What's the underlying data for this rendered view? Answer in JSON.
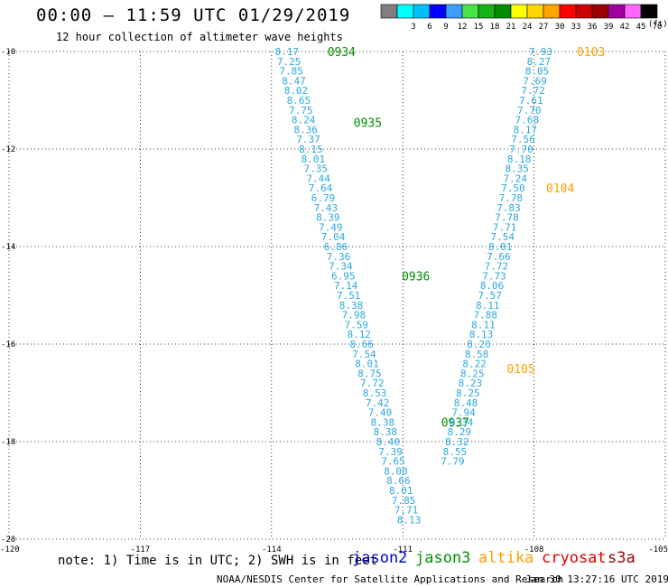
{
  "header": {
    "title": "00:00 — 11:59 UTC 01/29/2019",
    "subtitle": "12 hour collection of altimeter wave heights",
    "scale_unit": "(ft)"
  },
  "color_scale": [
    {
      "label": "",
      "color": "#7f7f7f"
    },
    {
      "label": "3",
      "color": "#00ffff"
    },
    {
      "label": "6",
      "color": "#00bfff"
    },
    {
      "label": "9",
      "color": "#0000ff"
    },
    {
      "label": "12",
      "color": "#3c9cff"
    },
    {
      "label": "15",
      "color": "#47e347"
    },
    {
      "label": "18",
      "color": "#16b316"
    },
    {
      "label": "21",
      "color": "#008c00"
    },
    {
      "label": "24",
      "color": "#ffff00"
    },
    {
      "label": "27",
      "color": "#ffd700"
    },
    {
      "label": "30",
      "color": "#ffa500"
    },
    {
      "label": "33",
      "color": "#ff0000"
    },
    {
      "label": "36",
      "color": "#cc0000"
    },
    {
      "label": "39",
      "color": "#990000"
    },
    {
      "label": "42",
      "color": "#a000a0"
    },
    {
      "label": "45",
      "color": "#ff66ff"
    },
    {
      "label": "70",
      "color": "#000000"
    }
  ],
  "footer": {
    "note": "note: 1) Time is in UTC; 2) SWH is in feet",
    "satellites": [
      {
        "name": "jason2",
        "color": "#0000d0"
      },
      {
        "name": "jason3",
        "color": "#009000"
      },
      {
        "name": "altika",
        "color": "#ffa000"
      },
      {
        "name": "cryosat",
        "color": "#e00000"
      },
      {
        "name": "s3a",
        "color": "#a00000"
      }
    ],
    "credit": "NOAA/NESDIS Center for Satellite Applications and Research",
    "timestamp": "Jan 30 13:27:16 UTC 2019"
  },
  "chart_data": {
    "type": "scatter",
    "title": "00:00 — 11:59 UTC 01/29/2019",
    "xlim": [
      -120,
      -105
    ],
    "ylim": [
      -20,
      -10
    ],
    "x_ticks": [
      -120,
      -117,
      -114,
      -111,
      -108,
      -105
    ],
    "y_ticks": [
      -20,
      -18,
      -16,
      -14,
      -12,
      -10
    ],
    "x_tick_labels": [
      "-120",
      "-117",
      "-114",
      "-111",
      "-108",
      "-105"
    ],
    "y_tick_labels": [
      "-20",
      "-18",
      "-16",
      "-14",
      "-12",
      "-10"
    ],
    "grid": true,
    "value_color": "#2aa8e0",
    "series": [
      {
        "name": "jason3",
        "color": "#009000",
        "points": [
          {
            "lon": -113.65,
            "lat": -10.0,
            "swh": 8.17
          },
          {
            "lon": -113.6,
            "lat": -10.2,
            "swh": 7.25
          },
          {
            "lon": -113.55,
            "lat": -10.4,
            "swh": 7.85
          },
          {
            "lon": -113.49,
            "lat": -10.6,
            "swh": 8.47
          },
          {
            "lon": -113.44,
            "lat": -10.8,
            "swh": 8.02
          },
          {
            "lon": -113.38,
            "lat": -11.0,
            "swh": 8.65
          },
          {
            "lon": -113.33,
            "lat": -11.2,
            "swh": 7.75
          },
          {
            "lon": -113.27,
            "lat": -11.4,
            "swh": 8.24
          },
          {
            "lon": -113.22,
            "lat": -11.6,
            "swh": 8.36
          },
          {
            "lon": -113.16,
            "lat": -11.8,
            "swh": 7.37
          },
          {
            "lon": -113.1,
            "lat": -12.0,
            "swh": 8.15
          },
          {
            "lon": -113.05,
            "lat": -12.2,
            "swh": 8.01
          },
          {
            "lon": -112.99,
            "lat": -12.4,
            "swh": 7.35
          },
          {
            "lon": -112.93,
            "lat": -12.6,
            "swh": 7.44
          },
          {
            "lon": -112.88,
            "lat": -12.8,
            "swh": 7.64
          },
          {
            "lon": -112.82,
            "lat": -13.0,
            "swh": 6.79
          },
          {
            "lon": -112.76,
            "lat": -13.2,
            "swh": 7.43
          },
          {
            "lon": -112.71,
            "lat": -13.4,
            "swh": 8.39
          },
          {
            "lon": -112.65,
            "lat": -13.6,
            "swh": 7.49
          },
          {
            "lon": -112.59,
            "lat": -13.8,
            "swh": 7.04
          },
          {
            "lon": -112.53,
            "lat": -14.0,
            "swh": 6.86
          },
          {
            "lon": -112.47,
            "lat": -14.2,
            "swh": 7.36
          },
          {
            "lon": -112.42,
            "lat": -14.4,
            "swh": 7.34
          },
          {
            "lon": -112.36,
            "lat": -14.6,
            "swh": 6.95
          },
          {
            "lon": -112.3,
            "lat": -14.8,
            "swh": 7.14
          },
          {
            "lon": -112.24,
            "lat": -15.0,
            "swh": 7.51
          },
          {
            "lon": -112.18,
            "lat": -15.2,
            "swh": 8.38
          },
          {
            "lon": -112.12,
            "lat": -15.4,
            "swh": 7.98
          },
          {
            "lon": -112.06,
            "lat": -15.6,
            "swh": 7.59
          },
          {
            "lon": -112.0,
            "lat": -15.8,
            "swh": 8.12
          },
          {
            "lon": -111.94,
            "lat": -16.0,
            "swh": 8.66
          },
          {
            "lon": -111.88,
            "lat": -16.2,
            "swh": 7.54
          },
          {
            "lon": -111.82,
            "lat": -16.4,
            "swh": 8.01
          },
          {
            "lon": -111.76,
            "lat": -16.6,
            "swh": 8.75
          },
          {
            "lon": -111.7,
            "lat": -16.8,
            "swh": 7.72
          },
          {
            "lon": -111.64,
            "lat": -17.0,
            "swh": 8.53
          },
          {
            "lon": -111.58,
            "lat": -17.2,
            "swh": 7.42
          },
          {
            "lon": -111.52,
            "lat": -17.4,
            "swh": 7.4
          },
          {
            "lon": -111.46,
            "lat": -17.6,
            "swh": 8.38
          },
          {
            "lon": -111.4,
            "lat": -17.8,
            "swh": 8.38
          },
          {
            "lon": -111.34,
            "lat": -18.0,
            "swh": 8.4
          },
          {
            "lon": -111.28,
            "lat": -18.2,
            "swh": 7.39
          },
          {
            "lon": -111.22,
            "lat": -18.4,
            "swh": 7.65
          },
          {
            "lon": -111.16,
            "lat": -18.6,
            "swh": 8.0
          },
          {
            "lon": -111.1,
            "lat": -18.8,
            "swh": 8.66
          },
          {
            "lon": -111.04,
            "lat": -19.0,
            "swh": 8.01
          },
          {
            "lon": -110.98,
            "lat": -19.2,
            "swh": 7.85
          },
          {
            "lon": -110.92,
            "lat": -19.4,
            "swh": 7.71
          },
          {
            "lon": -110.86,
            "lat": -19.6,
            "swh": 8.13
          }
        ],
        "time_labels": [
          {
            "text": "0934",
            "lon": -112.4,
            "lat": -10.0
          },
          {
            "text": "0935",
            "lon": -111.8,
            "lat": -11.45
          },
          {
            "text": "0936",
            "lon": -110.7,
            "lat": -14.6
          },
          {
            "text": "0937",
            "lon": -109.8,
            "lat": -17.6
          }
        ]
      },
      {
        "name": "altika",
        "color": "#ffa000",
        "points": [
          {
            "lon": -107.85,
            "lat": -10.0,
            "swh": 7.93
          },
          {
            "lon": -107.89,
            "lat": -10.2,
            "swh": 8.27
          },
          {
            "lon": -107.93,
            "lat": -10.4,
            "swh": 8.05
          },
          {
            "lon": -107.98,
            "lat": -10.6,
            "swh": 7.69
          },
          {
            "lon": -108.02,
            "lat": -10.8,
            "swh": 7.72
          },
          {
            "lon": -108.07,
            "lat": -11.0,
            "swh": 7.61
          },
          {
            "lon": -108.11,
            "lat": -11.2,
            "swh": 7.7
          },
          {
            "lon": -108.16,
            "lat": -11.4,
            "swh": 7.68
          },
          {
            "lon": -108.2,
            "lat": -11.6,
            "swh": 8.17
          },
          {
            "lon": -108.25,
            "lat": -11.8,
            "swh": 7.56
          },
          {
            "lon": -108.29,
            "lat": -12.0,
            "swh": 7.7
          },
          {
            "lon": -108.34,
            "lat": -12.2,
            "swh": 8.18
          },
          {
            "lon": -108.39,
            "lat": -12.4,
            "swh": 8.35
          },
          {
            "lon": -108.43,
            "lat": -12.6,
            "swh": 7.24
          },
          {
            "lon": -108.48,
            "lat": -12.8,
            "swh": 7.5
          },
          {
            "lon": -108.53,
            "lat": -13.0,
            "swh": 7.78
          },
          {
            "lon": -108.58,
            "lat": -13.2,
            "swh": 7.83
          },
          {
            "lon": -108.62,
            "lat": -13.4,
            "swh": 7.78
          },
          {
            "lon": -108.67,
            "lat": -13.6,
            "swh": 7.71
          },
          {
            "lon": -108.72,
            "lat": -13.8,
            "swh": 7.54
          },
          {
            "lon": -108.77,
            "lat": -14.0,
            "swh": 8.01
          },
          {
            "lon": -108.81,
            "lat": -14.2,
            "swh": 7.66
          },
          {
            "lon": -108.86,
            "lat": -14.4,
            "swh": 7.72
          },
          {
            "lon": -108.91,
            "lat": -14.6,
            "swh": 7.73
          },
          {
            "lon": -108.96,
            "lat": -14.8,
            "swh": 8.06
          },
          {
            "lon": -109.01,
            "lat": -15.0,
            "swh": 7.57
          },
          {
            "lon": -109.06,
            "lat": -15.2,
            "swh": 8.11
          },
          {
            "lon": -109.11,
            "lat": -15.4,
            "swh": 7.88
          },
          {
            "lon": -109.16,
            "lat": -15.6,
            "swh": 8.11
          },
          {
            "lon": -109.21,
            "lat": -15.8,
            "swh": 8.13
          },
          {
            "lon": -109.26,
            "lat": -16.0,
            "swh": 8.2
          },
          {
            "lon": -109.31,
            "lat": -16.2,
            "swh": 8.58
          },
          {
            "lon": -109.36,
            "lat": -16.4,
            "swh": 8.22
          },
          {
            "lon": -109.41,
            "lat": -16.6,
            "swh": 8.25
          },
          {
            "lon": -109.46,
            "lat": -16.8,
            "swh": 8.23
          },
          {
            "lon": -109.51,
            "lat": -17.0,
            "swh": 8.25
          },
          {
            "lon": -109.56,
            "lat": -17.2,
            "swh": 8.48
          },
          {
            "lon": -109.61,
            "lat": -17.4,
            "swh": 7.94
          },
          {
            "lon": -109.66,
            "lat": -17.6,
            "swh": 8.34
          },
          {
            "lon": -109.71,
            "lat": -17.8,
            "swh": 8.29
          },
          {
            "lon": -109.76,
            "lat": -18.0,
            "swh": 8.32
          },
          {
            "lon": -109.81,
            "lat": -18.2,
            "swh": 8.55
          },
          {
            "lon": -109.86,
            "lat": -18.4,
            "swh": 7.79
          }
        ],
        "time_labels": [
          {
            "text": "0103",
            "lon": -106.7,
            "lat": -10.0
          },
          {
            "text": "0104",
            "lon": -107.4,
            "lat": -12.8
          },
          {
            "text": "0105",
            "lon": -108.3,
            "lat": -16.5
          }
        ]
      }
    ]
  }
}
